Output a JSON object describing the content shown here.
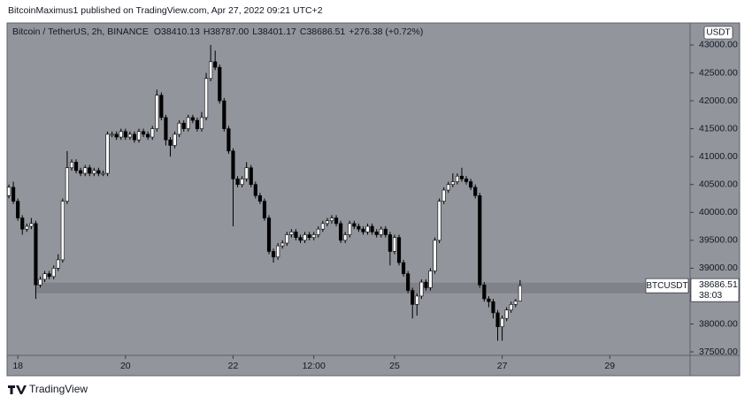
{
  "chart_data": {
    "type": "candlestick",
    "title": "BitcoinMaximus1 published on TradingView.com, Apr 27, 2022 09:21 UTC+2",
    "symbol": "Bitcoin / TetherUS, 2h, BINANCE",
    "ohlc_legend": [
      {
        "label": "O",
        "value": "38410.13"
      },
      {
        "label": "H",
        "value": "38787.00"
      },
      {
        "label": "L",
        "value": "38401.17"
      },
      {
        "label": "C",
        "value": "38686.51"
      }
    ],
    "change": "+276.38 (+0.72%)",
    "currency": "USDT",
    "ticker": "BTCUSDT",
    "countdown": "38:03",
    "branding": "TradingView",
    "background": "#93959d",
    "up_color": "#ffffff",
    "down_color": "#000000",
    "zone": {
      "low": 38550,
      "high": 38740,
      "start": 6
    },
    "open": [
      40300,
      40450,
      40200,
      39900,
      39700,
      39750,
      39800,
      38700,
      38800,
      38900,
      38850,
      39000,
      39150,
      40200,
      40800,
      40900,
      40750,
      40700,
      40800,
      40700,
      40750,
      40700,
      40700,
      41400,
      41400,
      41350,
      41450,
      41350,
      41400,
      41300,
      41450,
      41400,
      41350,
      41500,
      42100,
      41700,
      41300,
      41200,
      41400,
      41600,
      41500,
      41700,
      41650,
      41500,
      41700,
      42400,
      42700,
      42600,
      42000,
      41500,
      41100,
      40600,
      40500,
      40600,
      40800,
      40500,
      40300,
      40200,
      39900,
      39300,
      39200,
      39400,
      39450,
      39600,
      39650,
      39550,
      39500,
      39600,
      39550,
      39600,
      39700,
      39800,
      39850,
      39900,
      39800,
      39500,
      39600,
      39800,
      39750,
      39700,
      39650,
      39750,
      39650,
      39600,
      39700,
      39600,
      39300,
      39550,
      39100,
      38900,
      38600,
      38350,
      38500,
      38750,
      38650,
      38950,
      39500,
      40200,
      40400,
      40500,
      40550,
      40650,
      40600,
      40550,
      40450,
      40300,
      38700,
      38450,
      38400,
      38200,
      37950,
      38100,
      38250,
      38350,
      38410.13
    ],
    "high": [
      40500,
      40550,
      40250,
      39950,
      39800,
      39900,
      39850,
      38850,
      38950,
      38950,
      39050,
      39250,
      40250,
      41100,
      40950,
      40950,
      40800,
      40850,
      40850,
      40800,
      40800,
      40750,
      41450,
      41450,
      41450,
      41500,
      41500,
      41450,
      41450,
      41500,
      41500,
      41450,
      41550,
      42200,
      42150,
      41750,
      41350,
      41450,
      41650,
      41650,
      41750,
      41750,
      41700,
      41800,
      42500,
      43000,
      42900,
      42650,
      42050,
      41550,
      41150,
      40650,
      40650,
      40900,
      40850,
      40550,
      40350,
      40250,
      39950,
      39350,
      39450,
      39500,
      39650,
      39700,
      39700,
      39600,
      39650,
      39650,
      39650,
      39750,
      39850,
      39900,
      39950,
      39950,
      39850,
      39650,
      39850,
      39850,
      39800,
      39750,
      39800,
      39800,
      39700,
      39750,
      39750,
      39650,
      39600,
      39600,
      39150,
      38950,
      38650,
      38550,
      38800,
      38800,
      39000,
      39550,
      40250,
      40450,
      40550,
      40700,
      40700,
      40800,
      40650,
      40600,
      40500,
      40350,
      38750,
      38500,
      38450,
      38250,
      38150,
      38300,
      38400,
      38450,
      38787
    ],
    "low": [
      40250,
      40150,
      39850,
      39600,
      39650,
      39700,
      38450,
      38650,
      38750,
      38800,
      38800,
      38950,
      39100,
      40150,
      40750,
      40700,
      40650,
      40650,
      40650,
      40650,
      40650,
      40650,
      40650,
      41350,
      41300,
      41300,
      41300,
      41300,
      41250,
      41250,
      41350,
      41300,
      41300,
      41450,
      41650,
      41200,
      41000,
      41150,
      41350,
      41450,
      41450,
      41600,
      41450,
      41450,
      41650,
      42350,
      42550,
      41950,
      41450,
      41050,
      39750,
      40450,
      40450,
      40550,
      40450,
      40250,
      40150,
      39850,
      39250,
      39100,
      39150,
      39350,
      39400,
      39550,
      39500,
      39450,
      39450,
      39500,
      39500,
      39550,
      39650,
      39750,
      39800,
      39750,
      39450,
      39450,
      39550,
      39700,
      39650,
      39600,
      39600,
      39600,
      39550,
      39550,
      39550,
      39050,
      39250,
      39050,
      38850,
      38550,
      38100,
      38150,
      38450,
      38600,
      38600,
      38900,
      39450,
      40150,
      40350,
      40450,
      40500,
      40550,
      40500,
      40400,
      40250,
      38650,
      38400,
      38300,
      38100,
      37700,
      37700,
      38050,
      38200,
      38300,
      38401.17
    ],
    "close": [
      40450,
      40200,
      39900,
      39700,
      39750,
      39800,
      38700,
      38800,
      38900,
      38850,
      39000,
      39150,
      40200,
      40800,
      40900,
      40750,
      40700,
      40800,
      40700,
      40750,
      40700,
      40700,
      41400,
      41400,
      41350,
      41450,
      41350,
      41400,
      41300,
      41450,
      41400,
      41350,
      41500,
      42100,
      41700,
      41300,
      41200,
      41400,
      41600,
      41500,
      41700,
      41650,
      41500,
      41700,
      42400,
      42700,
      42600,
      42000,
      41500,
      41100,
      40600,
      40500,
      40600,
      40800,
      40500,
      40300,
      40200,
      39900,
      39300,
      39200,
      39400,
      39450,
      39600,
      39650,
      39550,
      39500,
      39600,
      39550,
      39600,
      39700,
      39800,
      39850,
      39900,
      39800,
      39500,
      39600,
      39800,
      39750,
      39700,
      39650,
      39750,
      39650,
      39600,
      39700,
      39600,
      39300,
      39550,
      39100,
      38900,
      38600,
      38350,
      38500,
      38750,
      38650,
      38950,
      39500,
      40200,
      40400,
      40500,
      40550,
      40650,
      40600,
      40550,
      40450,
      40300,
      38700,
      38450,
      38400,
      38200,
      37950,
      38100,
      38250,
      38350,
      38410.13,
      38686.51
    ],
    "xlim": [
      -0.4,
      151.9
    ],
    "xticks": [
      {
        "value": 2,
        "label": "18"
      },
      {
        "value": 26,
        "label": "20"
      },
      {
        "value": 50,
        "label": "22"
      },
      {
        "value": 68,
        "label": "12:00"
      },
      {
        "value": 86,
        "label": "25"
      },
      {
        "value": 110,
        "label": "27"
      },
      {
        "value": 134,
        "label": "29"
      }
    ],
    "ylim": [
      37437,
      43379
    ],
    "yticks": [
      {
        "value": 37500,
        "label": "37500.00"
      },
      {
        "value": 38000,
        "label": "38000.00"
      },
      {
        "value": 38500,
        "label": "38500.00"
      },
      {
        "value": 39000,
        "label": "39000.00"
      },
      {
        "value": 39500,
        "label": "39500.00"
      },
      {
        "value": 40000,
        "label": "40000.00"
      },
      {
        "value": 40500,
        "label": "40500.00"
      },
      {
        "value": 41000,
        "label": "41000.00"
      },
      {
        "value": 41500,
        "label": "41500.00"
      },
      {
        "value": 42000,
        "label": "42000.00"
      },
      {
        "value": 42500,
        "label": "42500.00"
      },
      {
        "value": 43000,
        "label": "43000.00"
      }
    ]
  }
}
